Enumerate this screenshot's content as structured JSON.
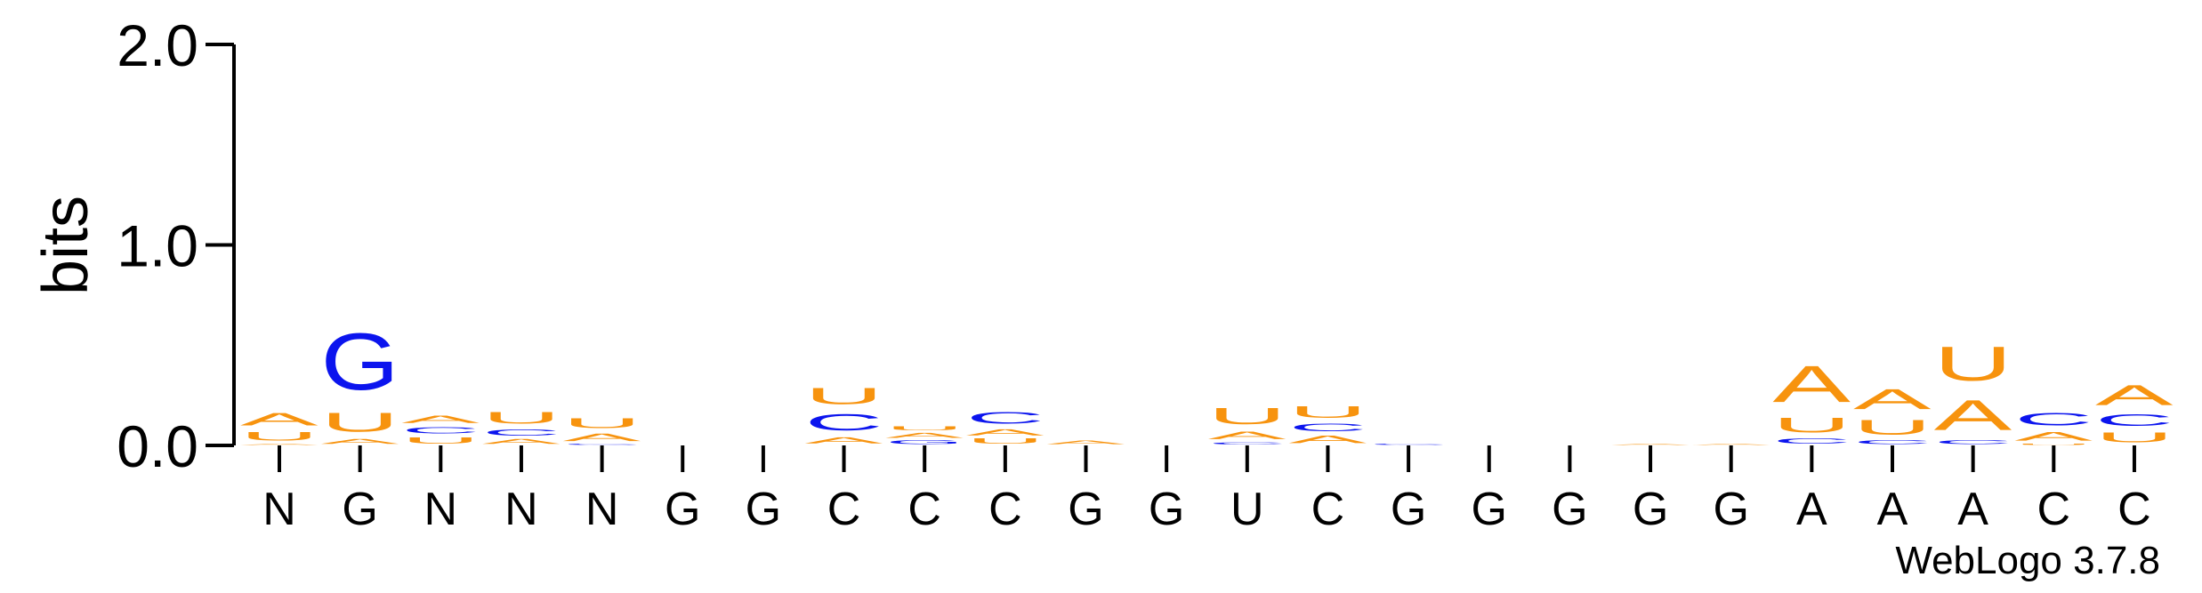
{
  "chart_data": {
    "type": "sequence-logo",
    "ylabel": "bits",
    "ylim": [
      0,
      2.0
    ],
    "y_ticks": [
      {
        "value": 0.0,
        "label": "0.0"
      },
      {
        "value": 1.0,
        "label": "1.0"
      },
      {
        "value": 2.0,
        "label": "2.0"
      }
    ],
    "x_tick_labels": [
      "N",
      "G",
      "N",
      "N",
      "N",
      "G",
      "G",
      "C",
      "C",
      "C",
      "G",
      "G",
      "U",
      "C",
      "G",
      "G",
      "G",
      "G",
      "G",
      "A",
      "A",
      "A",
      "C",
      "C"
    ],
    "credit": "WebLogo 3.7.8",
    "colors": {
      "A": "#f7930e",
      "U": "#f7930e",
      "C": "#0b14ee",
      "G": "#0b14ee"
    },
    "positions": [
      [
        [
          "A",
          0.01
        ],
        [
          "U",
          0.07
        ],
        [
          "A",
          0.1
        ]
      ],
      [
        [
          "A",
          0.04
        ],
        [
          "U",
          0.15
        ],
        [
          "G",
          0.45
        ]
      ],
      [
        [
          "U",
          0.05
        ],
        [
          "C",
          0.05
        ],
        [
          "A",
          0.06
        ]
      ],
      [
        [
          "A",
          0.04
        ],
        [
          "C",
          0.05
        ],
        [
          "U",
          0.09
        ]
      ],
      [
        [
          "C",
          0.01
        ],
        [
          "A",
          0.06
        ],
        [
          "U",
          0.08
        ]
      ],
      [],
      [],
      [
        [
          "A",
          0.05
        ],
        [
          "C",
          0.13
        ],
        [
          "U",
          0.13
        ]
      ],
      [
        [
          "G",
          0.03
        ],
        [
          "A",
          0.04
        ],
        [
          "U",
          0.03
        ]
      ],
      [
        [
          "U",
          0.04
        ],
        [
          "A",
          0.05
        ],
        [
          "C",
          0.09
        ]
      ],
      [
        [
          "A",
          0.03
        ]
      ],
      [],
      [
        [
          "C",
          0.02
        ],
        [
          "A",
          0.06
        ],
        [
          "U",
          0.13
        ]
      ],
      [
        [
          "A",
          0.06
        ],
        [
          "C",
          0.06
        ],
        [
          "U",
          0.09
        ]
      ],
      [
        [
          "C",
          0.01
        ]
      ],
      [],
      [],
      [
        [
          "A",
          0.01
        ]
      ],
      [
        [
          "A",
          0.01
        ]
      ],
      [
        [
          "C",
          0.04
        ],
        [
          "U",
          0.12
        ],
        [
          "A",
          0.29
        ]
      ],
      [
        [
          "C",
          0.03
        ],
        [
          "U",
          0.12
        ],
        [
          "A",
          0.16
        ]
      ],
      [
        [
          "C",
          0.03
        ],
        [
          "A",
          0.24
        ],
        [
          "U",
          0.27
        ]
      ],
      [
        [
          "U",
          0.01
        ],
        [
          "A",
          0.07
        ],
        [
          "C",
          0.1
        ]
      ],
      [
        [
          "U",
          0.08
        ],
        [
          "C",
          0.09
        ],
        [
          "A",
          0.16
        ]
      ]
    ]
  }
}
